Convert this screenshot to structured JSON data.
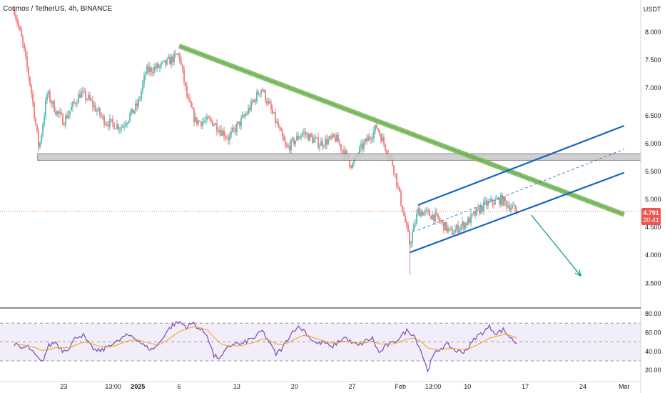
{
  "header": {
    "symbol": "Cosmos / TetherUS, 4h, BINANCE"
  },
  "price_axis": {
    "currency": "USDT"
  },
  "last_price": {
    "value": "4.791",
    "countdown": "20:41"
  },
  "colors": {
    "up": "#26a69a",
    "down": "#ef5350",
    "trend_green": "#74b856",
    "channel_blue": "#1565c0",
    "arrow_teal": "#0f9b8e",
    "rsi_line": "#7e57c2",
    "rsi_ma": "#f5a623",
    "support_gray": "#9e9e9e"
  },
  "chart_data": [
    {
      "type": "candlestick",
      "title": "",
      "ylim": [
        3.2,
        8.5
      ],
      "y_ticks": [
        "8.000",
        "7.500",
        "7.000",
        "6.500",
        "6.000",
        "5.500",
        "5.000",
        "4.500",
        "4.000",
        "3.500"
      ],
      "x_ticks": [
        "23",
        "13:00",
        "2025",
        "6",
        "13",
        "20",
        "27",
        "Feb",
        "13:00",
        "10",
        "17",
        "24",
        "Mar"
      ],
      "approx_close_path": [
        {
          "date": "Dec 17",
          "close": 8.4
        },
        {
          "date": "Dec 18",
          "close": 7.8
        },
        {
          "date": "Dec 19",
          "close": 7.0
        },
        {
          "date": "Dec 20",
          "close": 5.9
        },
        {
          "date": "Dec 21",
          "close": 6.9
        },
        {
          "date": "Dec 22",
          "close": 6.6
        },
        {
          "date": "Dec 23",
          "close": 6.4
        },
        {
          "date": "Dec 25",
          "close": 6.9
        },
        {
          "date": "Dec 26",
          "close": 6.8
        },
        {
          "date": "Dec 28",
          "close": 6.4
        },
        {
          "date": "Dec 30",
          "close": 6.3
        },
        {
          "date": "Jan 1",
          "close": 6.7
        },
        {
          "date": "Jan 2",
          "close": 7.3
        },
        {
          "date": "Jan 4",
          "close": 7.4
        },
        {
          "date": "Jan 6",
          "close": 7.6
        },
        {
          "date": "Jan 7",
          "close": 6.8
        },
        {
          "date": "Jan 8",
          "close": 6.4
        },
        {
          "date": "Jan 10",
          "close": 6.4
        },
        {
          "date": "Jan 12",
          "close": 6.1
        },
        {
          "date": "Jan 14",
          "close": 6.5
        },
        {
          "date": "Jan 16",
          "close": 7.0
        },
        {
          "date": "Jan 18",
          "close": 6.3
        },
        {
          "date": "Jan 19",
          "close": 5.9
        },
        {
          "date": "Jan 21",
          "close": 6.2
        },
        {
          "date": "Jan 23",
          "close": 6.0
        },
        {
          "date": "Jan 25",
          "close": 6.1
        },
        {
          "date": "Jan 27",
          "close": 5.6
        },
        {
          "date": "Jan 28",
          "close": 5.9
        },
        {
          "date": "Jan 30",
          "close": 6.3
        },
        {
          "date": "Feb 1",
          "close": 5.6
        },
        {
          "date": "Feb 3",
          "close": 4.2
        },
        {
          "date": "Feb 4",
          "close": 4.8
        },
        {
          "date": "Feb 6",
          "close": 4.7
        },
        {
          "date": "Feb 8",
          "close": 4.4
        },
        {
          "date": "Feb 10",
          "close": 4.6
        },
        {
          "date": "Feb 12",
          "close": 4.9
        },
        {
          "date": "Feb 14",
          "close": 5.0
        },
        {
          "date": "Feb 16",
          "close": 4.79
        }
      ],
      "drawings": {
        "support_zone": [
          5.7,
          5.82
        ],
        "descending_trendline": [
          {
            "date": "Jan 6",
            "price": 7.75
          },
          {
            "date": "Mar 1",
            "price": 4.73
          }
        ],
        "channel_upper": [
          {
            "date": "Feb 4",
            "price": 4.9
          },
          {
            "date": "Mar 1",
            "price": 6.32
          }
        ],
        "channel_lower": [
          {
            "date": "Feb 3",
            "price": 4.05
          },
          {
            "date": "Mar 1",
            "price": 5.48
          }
        ],
        "channel_mid": [
          {
            "date": "Feb 4",
            "price": 4.45
          },
          {
            "date": "Mar 1",
            "price": 5.9
          }
        ],
        "projection_arrow": [
          {
            "date": "Feb 18",
            "price": 4.72
          },
          {
            "date": "Feb 24",
            "price": 3.63
          }
        ]
      }
    },
    {
      "type": "line",
      "title": "",
      "ylim": [
        10,
        85
      ],
      "y_ticks": [
        "80.00",
        "60.00",
        "40.00",
        "20.00"
      ],
      "band": [
        30,
        70
      ],
      "rsi_values": [
        48,
        43,
        45,
        36,
        28,
        46,
        50,
        41,
        44,
        56,
        57,
        46,
        40,
        42,
        48,
        50,
        56,
        57,
        52,
        45,
        42,
        48,
        60,
        68,
        71,
        66,
        70,
        63,
        58,
        35,
        33,
        44,
        49,
        47,
        52,
        55,
        62,
        50,
        37,
        44,
        57,
        66,
        63,
        54,
        48,
        50,
        44,
        50,
        55,
        49,
        46,
        51,
        54,
        38,
        46,
        49,
        55,
        62,
        58,
        42,
        20,
        37,
        44,
        47,
        41,
        39,
        44,
        55,
        60,
        66,
        59,
        63,
        55,
        48
      ],
      "rsi_ma_values": [
        48,
        47,
        46,
        44,
        41,
        42,
        44,
        44,
        44,
        47,
        50,
        49,
        46,
        45,
        45,
        47,
        50,
        52,
        52,
        50,
        48,
        47,
        51,
        56,
        61,
        64,
        66,
        65,
        63,
        55,
        48,
        46,
        46,
        46,
        48,
        50,
        53,
        52,
        48,
        47,
        50,
        54,
        57,
        56,
        53,
        51,
        49,
        49,
        51,
        50,
        49,
        49,
        51,
        48,
        48,
        48,
        50,
        53,
        54,
        51,
        44,
        42,
        42,
        43,
        43,
        42,
        43,
        46,
        50,
        54,
        56,
        58,
        57,
        54
      ]
    }
  ]
}
